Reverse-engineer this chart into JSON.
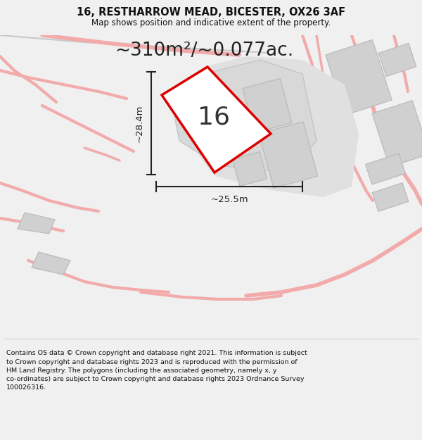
{
  "title_line1": "16, RESTHARROW MEAD, BICESTER, OX26 3AF",
  "title_line2": "Map shows position and indicative extent of the property.",
  "area_label": "~310m²/~0.077ac.",
  "plot_number": "16",
  "dim_height": "~28.4m",
  "dim_width": "~25.5m",
  "footer": "Contains OS data © Crown copyright and database right 2021. This information is subject to Crown copyright and database rights 2023 and is reproduced with the permission of HM Land Registry. The polygons (including the associated geometry, namely x, y co-ordinates) are subject to Crown copyright and database rights 2023 Ordnance Survey 100026316.",
  "bg_color": "#f0f0f0",
  "map_bg": "#ffffff",
  "road_color": "#f2aaaa",
  "road_color2": "#e8c8c8",
  "building_color": "#d0d0d0",
  "building_edge": "#b8b8b8",
  "plot_border_color": "#dd0000",
  "title_fontsize": 10.5,
  "subtitle_fontsize": 8.5,
  "area_fontsize": 19,
  "plotnum_fontsize": 26,
  "dim_fontsize": 9.5,
  "footer_fontsize": 6.8
}
